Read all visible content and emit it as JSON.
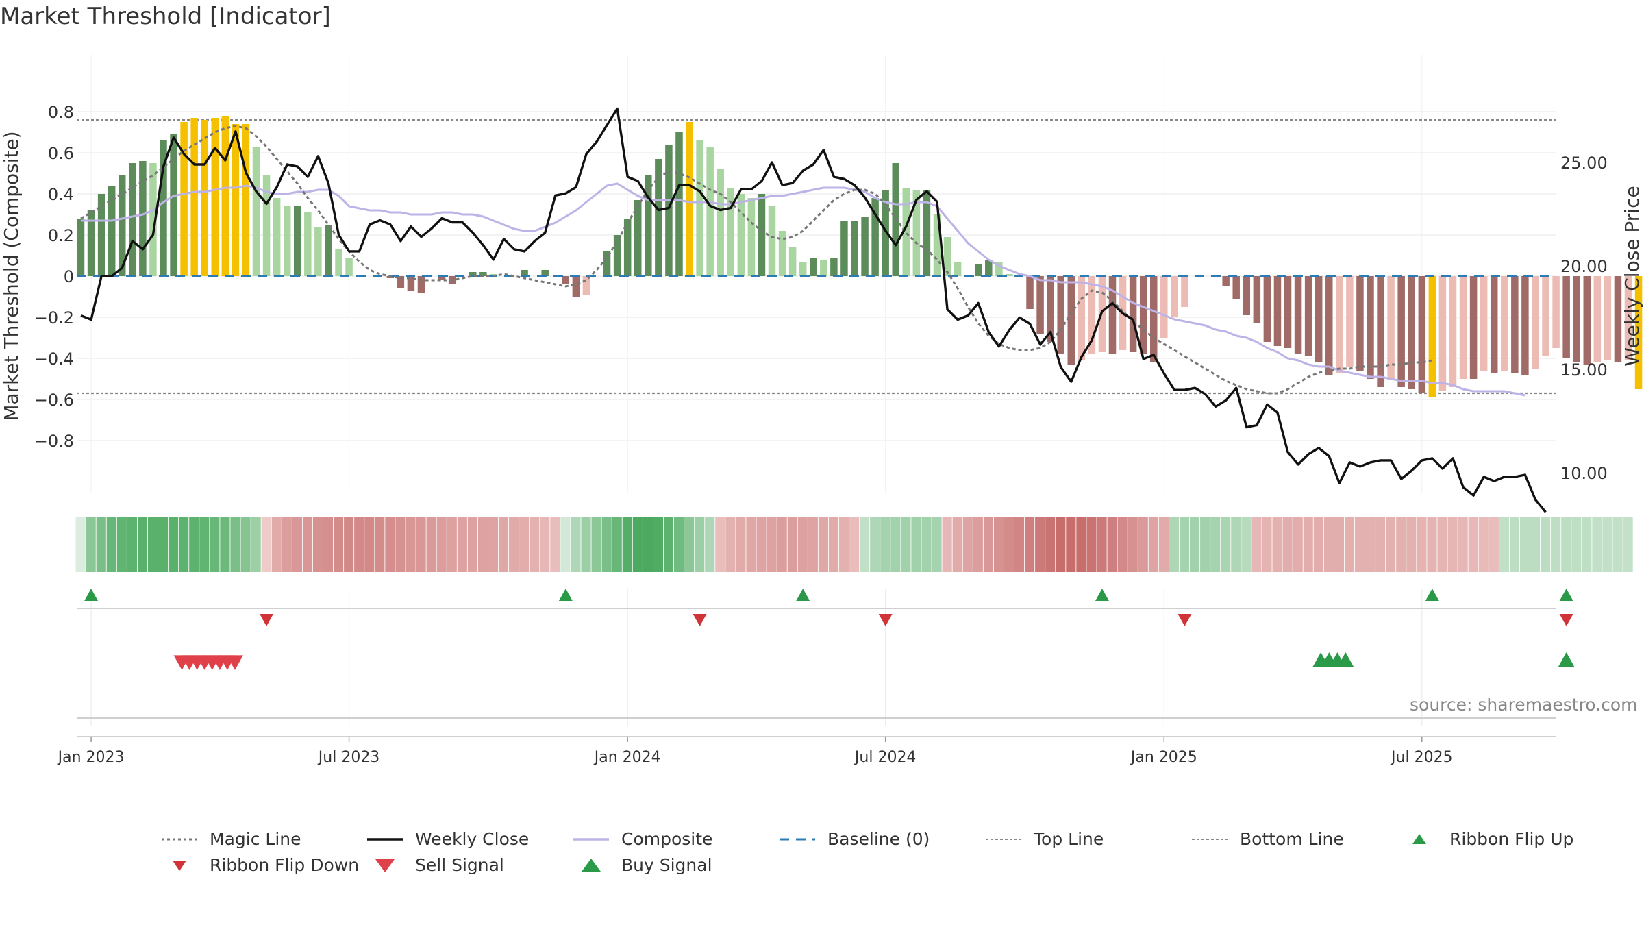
{
  "title": "Market Threshold [Indicator]",
  "source": "source: sharemaestro.com",
  "chart_data": {
    "type": "bar",
    "start_date": "2022-12-26",
    "left_axis": {
      "label": "Market Threshold (Composite)",
      "ticks": [
        0.8,
        0.6,
        0.4,
        0.2,
        0,
        -0.2,
        -0.4,
        -0.6,
        -0.8
      ],
      "tick_labels": [
        "0.8",
        "0.6",
        "0.4",
        "0.2",
        "0",
        "−0.2",
        "−0.4",
        "−0.6",
        "−0.8"
      ],
      "range": [
        -0.85,
        0.86
      ]
    },
    "right_axis": {
      "label": "Weekly Close Price",
      "ticks": [
        25,
        20,
        15,
        10
      ],
      "tick_labels": [
        "25.00",
        "20.00",
        "15.00",
        "10.00"
      ],
      "range": [
        8.2,
        28.2
      ]
    },
    "x_axis": {
      "tick_labels": [
        "Jan 2023",
        "Jul 2023",
        "Jan 2024",
        "Jul 2024",
        "Jan 2025",
        "Jul 2025"
      ],
      "tick_weeks": [
        1,
        26,
        53,
        78,
        105,
        130
      ]
    },
    "top_line": 0.76,
    "bottom_line": -0.57,
    "series": [
      {
        "name": "Composite bars",
        "values": [
          0.28,
          0.32,
          0.4,
          0.44,
          0.49,
          0.55,
          0.56,
          0.55,
          0.66,
          0.69,
          0.75,
          0.77,
          0.76,
          0.77,
          0.78,
          0.74,
          0.74,
          0.63,
          0.49,
          0.38,
          0.34,
          0.34,
          0.31,
          0.24,
          0.25,
          0.13,
          0.09,
          0.0,
          0.0,
          0.0,
          -0.01,
          -0.06,
          -0.07,
          -0.08,
          0.0,
          -0.02,
          -0.04,
          0.0,
          0.02,
          0.02,
          0.01,
          0.0,
          0.0,
          0.03,
          0.0,
          0.03,
          0.0,
          -0.04,
          -0.1,
          -0.09,
          0.0,
          0.12,
          0.2,
          0.28,
          0.37,
          0.49,
          0.57,
          0.64,
          0.7,
          0.75,
          0.66,
          0.63,
          0.52,
          0.43,
          0.4,
          0.38,
          0.4,
          0.34,
          0.22,
          0.14,
          0.07,
          0.09,
          0.08,
          0.09,
          0.27,
          0.27,
          0.29,
          0.38,
          0.42,
          0.55,
          0.43,
          0.42,
          0.42,
          0.3,
          0.19,
          0.07,
          0.0,
          0.06,
          0.08,
          0.07,
          0.01,
          0.0,
          -0.16,
          -0.28,
          -0.32,
          -0.38,
          -0.43,
          -0.41,
          -0.38,
          -0.37,
          -0.38,
          -0.36,
          -0.37,
          -0.38,
          -0.42,
          -0.3,
          -0.2,
          -0.15,
          0.0,
          0.0,
          0.0,
          -0.05,
          -0.11,
          -0.19,
          -0.23,
          -0.32,
          -0.34,
          -0.35,
          -0.38,
          -0.39,
          -0.42,
          -0.48,
          -0.47,
          -0.44,
          -0.46,
          -0.5,
          -0.54,
          -0.5,
          -0.54,
          -0.55,
          -0.57,
          -0.59,
          -0.56,
          -0.54,
          -0.5,
          -0.5,
          -0.46,
          -0.47,
          -0.46,
          -0.47,
          -0.48,
          -0.45,
          -0.39,
          -0.35,
          -0.4,
          -0.42,
          -0.43,
          -0.42,
          -0.41,
          -0.42,
          -0.41,
          -0.55
        ]
      },
      {
        "name": "Weekly Close",
        "values": [
          17.6,
          17.4,
          19.5,
          19.5,
          19.9,
          21.2,
          20.8,
          21.5,
          24.8,
          26.2,
          25.4,
          24.9,
          24.9,
          25.7,
          25.1,
          26.5,
          24.5,
          23.6,
          23.0,
          23.8,
          24.9,
          24.8,
          24.3,
          25.3,
          24.0,
          21.5,
          20.7,
          20.7,
          22.0,
          22.2,
          22.0,
          21.2,
          21.9,
          21.4,
          21.8,
          22.3,
          22.1,
          22.1,
          21.6,
          21.0,
          20.3,
          21.3,
          20.8,
          20.7,
          21.2,
          21.6,
          23.4,
          23.5,
          23.8,
          25.4,
          26.0,
          26.8,
          27.6,
          24.3,
          24.1,
          23.3,
          22.7,
          22.8,
          23.9,
          23.9,
          23.6,
          22.9,
          22.7,
          22.8,
          23.7,
          23.7,
          24.1,
          25.0,
          23.9,
          24.0,
          24.6,
          24.9,
          25.6,
          24.3,
          24.2,
          23.9,
          23.3,
          22.5,
          21.7,
          21.0,
          21.9,
          23.2,
          23.6,
          23.1,
          17.9,
          17.4,
          17.6,
          18.2,
          16.8,
          16.1,
          16.9,
          17.5,
          17.2,
          16.2,
          16.8,
          15.1,
          14.4,
          15.6,
          16.4,
          17.8,
          18.2,
          17.7,
          17.4,
          15.5,
          15.7,
          14.8,
          14.0,
          14.0,
          14.1,
          13.8,
          13.2,
          13.5,
          14.1,
          12.2,
          12.3,
          13.3,
          12.9,
          11.0,
          10.4,
          10.9,
          11.2,
          10.8,
          9.5,
          10.5,
          10.3,
          10.5,
          10.6,
          10.6,
          9.7,
          10.1,
          10.6,
          10.7,
          10.2,
          10.7,
          9.3,
          8.9,
          9.8,
          9.6,
          9.8,
          9.8,
          9.9,
          8.7,
          8.1
        ]
      },
      {
        "name": "Composite",
        "values": [
          0.27,
          0.27,
          0.27,
          0.27,
          0.28,
          0.29,
          0.3,
          0.32,
          0.36,
          0.39,
          0.4,
          0.41,
          0.41,
          0.42,
          0.43,
          0.43,
          0.44,
          0.43,
          0.41,
          0.4,
          0.4,
          0.41,
          0.41,
          0.42,
          0.42,
          0.39,
          0.34,
          0.33,
          0.32,
          0.32,
          0.31,
          0.31,
          0.3,
          0.3,
          0.3,
          0.31,
          0.31,
          0.3,
          0.3,
          0.29,
          0.27,
          0.25,
          0.23,
          0.22,
          0.22,
          0.24,
          0.26,
          0.29,
          0.32,
          0.36,
          0.4,
          0.44,
          0.45,
          0.42,
          0.39,
          0.37,
          0.37,
          0.37,
          0.37,
          0.36,
          0.36,
          0.36,
          0.35,
          0.35,
          0.36,
          0.37,
          0.38,
          0.39,
          0.39,
          0.4,
          0.41,
          0.42,
          0.43,
          0.43,
          0.43,
          0.42,
          0.41,
          0.38,
          0.36,
          0.35,
          0.35,
          0.36,
          0.36,
          0.34,
          0.28,
          0.22,
          0.16,
          0.12,
          0.08,
          0.05,
          0.03,
          0.01,
          0.0,
          -0.02,
          -0.02,
          -0.03,
          -0.03,
          -0.03,
          -0.04,
          -0.05,
          -0.07,
          -0.1,
          -0.13,
          -0.15,
          -0.17,
          -0.19,
          -0.21,
          -0.22,
          -0.23,
          -0.24,
          -0.26,
          -0.27,
          -0.29,
          -0.3,
          -0.32,
          -0.35,
          -0.37,
          -0.4,
          -0.41,
          -0.43,
          -0.44,
          -0.44,
          -0.46,
          -0.47,
          -0.48,
          -0.49,
          -0.49,
          -0.5,
          -0.51,
          -0.51,
          -0.51,
          -0.52,
          -0.52,
          -0.53,
          -0.55,
          -0.56,
          -0.56,
          -0.56,
          -0.56,
          -0.57,
          -0.58
        ]
      },
      {
        "name": "Magic Line",
        "values": [
          0.28,
          0.31,
          0.34,
          0.37,
          0.4,
          0.43,
          0.46,
          0.49,
          0.53,
          0.57,
          0.61,
          0.64,
          0.67,
          0.7,
          0.72,
          0.73,
          0.72,
          0.68,
          0.63,
          0.57,
          0.51,
          0.45,
          0.38,
          0.32,
          0.25,
          0.18,
          0.12,
          0.07,
          0.03,
          0.01,
          0.0,
          -0.01,
          -0.01,
          -0.02,
          -0.02,
          -0.02,
          -0.02,
          -0.01,
          0.0,
          0.0,
          0.0,
          0.01,
          0.0,
          -0.01,
          -0.02,
          -0.03,
          -0.04,
          -0.05,
          -0.04,
          -0.02,
          0.03,
          0.09,
          0.17,
          0.26,
          0.34,
          0.42,
          0.48,
          0.51,
          0.5,
          0.48,
          0.45,
          0.42,
          0.4,
          0.36,
          0.31,
          0.26,
          0.22,
          0.19,
          0.18,
          0.19,
          0.22,
          0.27,
          0.32,
          0.37,
          0.4,
          0.42,
          0.42,
          0.4,
          0.35,
          0.28,
          0.21,
          0.16,
          0.13,
          0.08,
          0.02,
          -0.06,
          -0.15,
          -0.23,
          -0.29,
          -0.33,
          -0.35,
          -0.36,
          -0.36,
          -0.35,
          -0.32,
          -0.26,
          -0.18,
          -0.11,
          -0.07,
          -0.08,
          -0.12,
          -0.17,
          -0.22,
          -0.26,
          -0.3,
          -0.33,
          -0.36,
          -0.39,
          -0.42,
          -0.45,
          -0.48,
          -0.51,
          -0.53,
          -0.55,
          -0.56,
          -0.57,
          -0.57,
          -0.55,
          -0.52,
          -0.49,
          -0.47,
          -0.46,
          -0.45,
          -0.45,
          -0.44,
          -0.44,
          -0.44,
          -0.43,
          -0.43,
          -0.42,
          -0.42,
          -0.41
        ]
      }
    ],
    "ribbon": [
      0.1,
      0.55,
      0.65,
      0.75,
      0.78,
      0.8,
      0.82,
      0.82,
      0.82,
      0.82,
      0.8,
      0.8,
      0.78,
      0.75,
      0.72,
      0.65,
      0.58,
      0.45,
      -0.1,
      -0.35,
      -0.45,
      -0.5,
      -0.52,
      -0.55,
      -0.57,
      -0.6,
      -0.62,
      -0.62,
      -0.62,
      -0.6,
      -0.58,
      -0.55,
      -0.52,
      -0.5,
      -0.48,
      -0.45,
      -0.43,
      -0.42,
      -0.42,
      -0.42,
      -0.4,
      -0.38,
      -0.35,
      -0.33,
      -0.3,
      -0.25,
      -0.2,
      0.15,
      0.35,
      0.45,
      0.55,
      0.65,
      0.75,
      0.85,
      0.9,
      0.9,
      0.88,
      0.8,
      0.7,
      0.55,
      0.45,
      0.35,
      -0.2,
      -0.3,
      -0.35,
      -0.38,
      -0.4,
      -0.42,
      -0.45,
      -0.45,
      -0.43,
      -0.4,
      -0.38,
      -0.35,
      -0.3,
      -0.2,
      0.25,
      0.35,
      0.4,
      0.42,
      0.43,
      0.43,
      0.42,
      0.4,
      -0.25,
      -0.35,
      -0.4,
      -0.45,
      -0.5,
      -0.55,
      -0.6,
      -0.65,
      -0.7,
      -0.75,
      -0.8,
      -0.85,
      -0.85,
      -0.85,
      -0.8,
      -0.75,
      -0.7,
      -0.62,
      -0.55,
      -0.48,
      -0.4,
      -0.35,
      0.35,
      0.4,
      0.42,
      0.42,
      0.4,
      0.38,
      0.35,
      0.3,
      -0.25,
      -0.28,
      -0.3,
      -0.32,
      -0.33,
      -0.33,
      -0.33,
      -0.33,
      -0.32,
      -0.31,
      -0.3,
      -0.3,
      -0.3,
      -0.3,
      -0.3,
      -0.3,
      -0.28,
      -0.28,
      -0.27,
      -0.26,
      -0.25,
      -0.24,
      -0.22,
      -0.2,
      0.25,
      0.27,
      0.28,
      0.28,
      0.28,
      0.27,
      0.27,
      0.26,
      0.26,
      0.25,
      0.25,
      0.25,
      0.24
    ],
    "ribbon_flip_up_weeks": [
      1,
      47,
      70,
      99,
      131,
      144
    ],
    "ribbon_flip_down_weeks": [
      18,
      60,
      78,
      107,
      144
    ],
    "sell_signal_weeks": [
      9,
      10,
      11,
      12,
      13,
      14,
      15,
      16
    ],
    "buy_signal_weeks": [
      120,
      121,
      122,
      123,
      144
    ],
    "colors": {
      "dark_green": "#5b8c5a",
      "light_green": "#a9d5a0",
      "gold": "#f5c000",
      "dark_red": "#a06b66",
      "light_red": "#ecbcb4",
      "composite": "#bdb3e6",
      "close": "#111111",
      "magic": "#777777",
      "baseline": "#2d7bb3",
      "signal_green": "#2a9a48",
      "signal_red": "#d13438"
    }
  },
  "legend": {
    "magic_line": "Magic Line",
    "weekly_close": "Weekly Close",
    "composite": "Composite",
    "baseline": "Baseline (0)",
    "top_line": "Top Line",
    "bottom_line": "Bottom Line",
    "ribbon_flip_up": "Ribbon Flip Up",
    "ribbon_flip_down": "Ribbon Flip Down",
    "sell_signal": "Sell Signal",
    "buy_signal": "Buy Signal"
  }
}
